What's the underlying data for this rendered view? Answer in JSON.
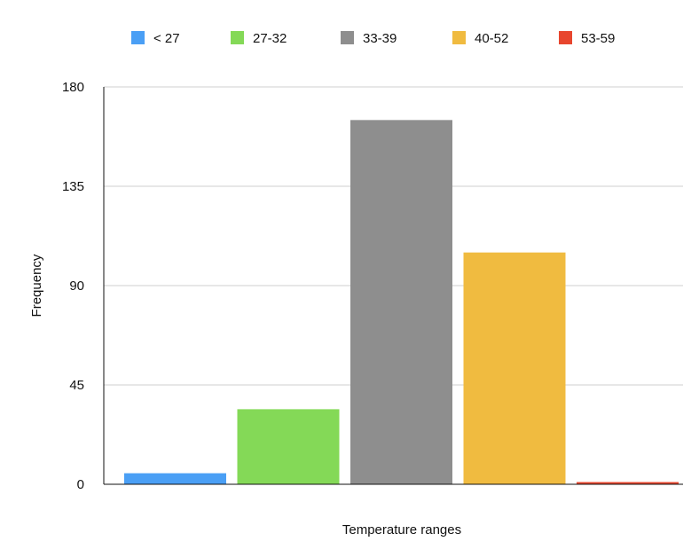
{
  "chart_data": {
    "type": "bar",
    "categories": [
      "< 27",
      "27-32",
      "33-39",
      "40-52",
      "53-59"
    ],
    "values": [
      5,
      34,
      165,
      105,
      1
    ],
    "colors": [
      "#4a9ff5",
      "#84d957",
      "#8e8e8e",
      "#f0bb40",
      "#e8462e"
    ],
    "xlabel": "Temperature ranges",
    "ylabel": "Frequency",
    "ylim": [
      0,
      180
    ],
    "yticks": [
      0,
      45,
      90,
      135,
      180
    ],
    "grid": true,
    "legend": {
      "position": "top",
      "entries": [
        "< 27",
        "27-32",
        "33-39",
        "40-52",
        "53-59"
      ]
    }
  }
}
